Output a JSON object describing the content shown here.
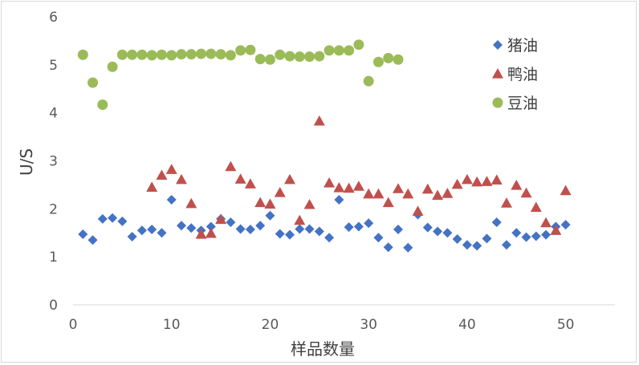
{
  "chart_data": {
    "type": "scatter",
    "title": "",
    "xlabel": "样品数量",
    "ylabel": "U/S",
    "xlim": [
      0,
      55
    ],
    "ylim": [
      0,
      6
    ],
    "xticks": [
      0,
      10,
      20,
      30,
      40,
      50
    ],
    "yticks": [
      0,
      1,
      2,
      3,
      4,
      5,
      6
    ],
    "grid": false,
    "legend_position": "top-right",
    "series": [
      {
        "name": "猪油",
        "marker": "diamond",
        "color": "#4472c4",
        "x": [
          1,
          2,
          3,
          4,
          5,
          6,
          7,
          8,
          9,
          10,
          11,
          12,
          13,
          14,
          15,
          16,
          17,
          18,
          19,
          20,
          21,
          22,
          23,
          24,
          25,
          26,
          27,
          28,
          29,
          30,
          31,
          32,
          33,
          34,
          35,
          36,
          37,
          38,
          39,
          40,
          41,
          42,
          43,
          44,
          45,
          46,
          47,
          48,
          49,
          50
        ],
        "y": [
          1.47,
          1.35,
          1.79,
          1.81,
          1.74,
          1.42,
          1.55,
          1.57,
          1.5,
          2.19,
          1.65,
          1.6,
          1.55,
          1.63,
          1.79,
          1.72,
          1.58,
          1.57,
          1.65,
          1.86,
          1.48,
          1.46,
          1.58,
          1.58,
          1.53,
          1.4,
          2.19,
          1.62,
          1.63,
          1.7,
          1.4,
          1.2,
          1.57,
          1.19,
          1.88,
          1.61,
          1.53,
          1.5,
          1.37,
          1.25,
          1.23,
          1.38,
          1.72,
          1.25,
          1.5,
          1.41,
          1.43,
          1.46,
          1.63,
          1.67
        ]
      },
      {
        "name": "鸭油",
        "marker": "triangle",
        "color": "#c0504d",
        "x": [
          8,
          9,
          10,
          11,
          12,
          13,
          14,
          15,
          16,
          17,
          18,
          19,
          20,
          21,
          22,
          23,
          24,
          25,
          26,
          27,
          28,
          29,
          30,
          31,
          32,
          33,
          34,
          35,
          36,
          37,
          38,
          39,
          40,
          41,
          42,
          43,
          44,
          45,
          46,
          47,
          48,
          49,
          50
        ],
        "y": [
          2.45,
          2.7,
          2.82,
          2.61,
          2.11,
          1.47,
          1.49,
          1.78,
          2.88,
          2.62,
          2.52,
          2.13,
          2.1,
          2.34,
          2.61,
          1.76,
          2.09,
          3.83,
          2.54,
          2.44,
          2.43,
          2.47,
          2.31,
          2.31,
          2.13,
          2.42,
          2.31,
          1.95,
          2.41,
          2.28,
          2.32,
          2.51,
          2.61,
          2.56,
          2.57,
          2.6,
          2.12,
          2.49,
          2.33,
          2.03,
          1.71,
          1.55,
          2.38
        ]
      },
      {
        "name": "豆油",
        "marker": "circle",
        "color": "#9bbb59",
        "x": [
          1,
          2,
          3,
          4,
          5,
          6,
          7,
          8,
          9,
          10,
          11,
          12,
          13,
          14,
          15,
          16,
          17,
          18,
          19,
          20,
          21,
          22,
          23,
          24,
          25,
          26,
          27,
          28,
          29,
          30,
          31,
          32,
          33
        ],
        "y": [
          5.21,
          4.63,
          4.17,
          4.96,
          5.21,
          5.21,
          5.21,
          5.2,
          5.21,
          5.2,
          5.22,
          5.22,
          5.23,
          5.23,
          5.22,
          5.2,
          5.3,
          5.31,
          5.12,
          5.11,
          5.21,
          5.18,
          5.17,
          5.17,
          5.18,
          5.3,
          5.3,
          5.3,
          5.42,
          4.66,
          5.06,
          5.14,
          5.11
        ]
      }
    ]
  }
}
